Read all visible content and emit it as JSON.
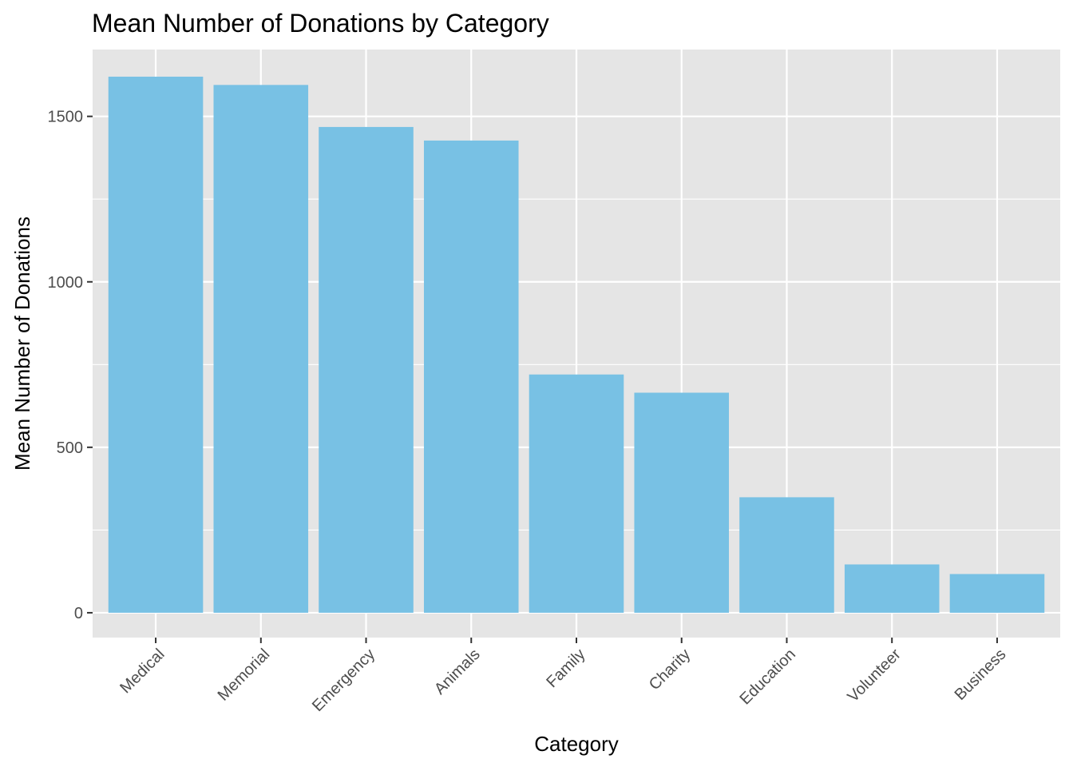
{
  "colors": {
    "panel_background": "#e5e5e5",
    "grid": "#ffffff",
    "bar_fill": "#78c1e4",
    "tick_text": "#4d4d4d",
    "tick_mark": "#333333"
  },
  "chart_data": {
    "type": "bar",
    "title": "Mean Number of Donations by Category",
    "xlabel": "Category",
    "ylabel": "Mean Number of Donations",
    "categories": [
      "Medical",
      "Memorial",
      "Emergency",
      "Animals",
      "Family",
      "Charity",
      "Education",
      "Volunteer",
      "Business"
    ],
    "values": [
      1620,
      1595,
      1468,
      1427,
      720,
      665,
      349,
      146,
      117
    ],
    "ylim": [
      -75,
      1702
    ],
    "yticks": [
      0,
      500,
      1000,
      1500
    ],
    "ytick_labels": [
      "0",
      "500",
      "1000",
      "1500"
    ],
    "grid": true,
    "legend": "none"
  }
}
